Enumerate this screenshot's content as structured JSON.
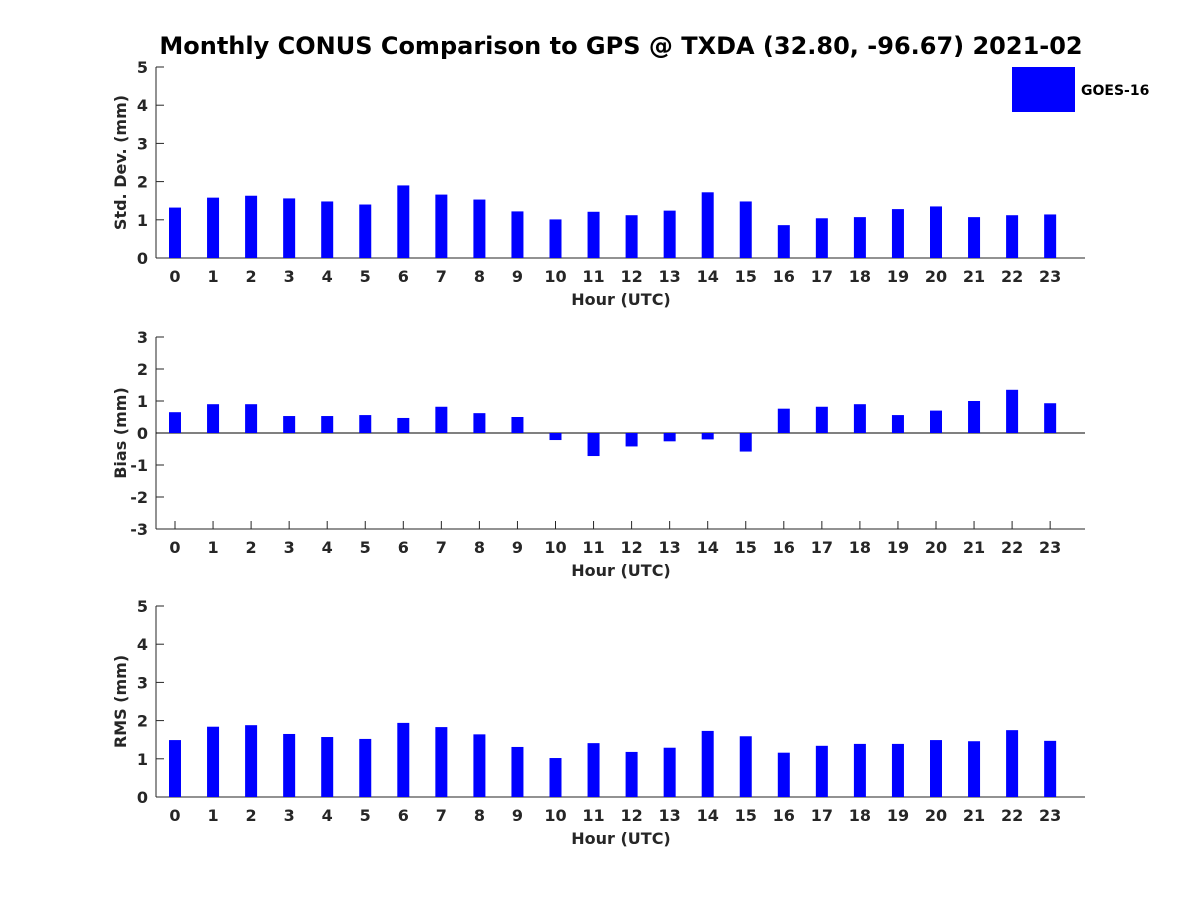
{
  "title": "Monthly CONUS Comparison to GPS @ TXDA (32.80, -96.67) 2021-02",
  "legend": {
    "label": "GOES-16",
    "color": "#0000ff"
  },
  "chart_data": [
    {
      "type": "bar",
      "categories": [
        "0",
        "1",
        "2",
        "3",
        "4",
        "5",
        "6",
        "7",
        "8",
        "9",
        "10",
        "11",
        "12",
        "13",
        "14",
        "15",
        "16",
        "17",
        "18",
        "19",
        "20",
        "21",
        "22",
        "23"
      ],
      "series": [
        {
          "name": "GOES-16",
          "values": [
            1.32,
            1.58,
            1.63,
            1.56,
            1.48,
            1.4,
            1.9,
            1.66,
            1.53,
            1.22,
            1.01,
            1.21,
            1.12,
            1.24,
            1.72,
            1.48,
            0.86,
            1.04,
            1.07,
            1.28,
            1.35,
            1.07,
            1.12,
            1.14
          ]
        }
      ],
      "xlabel": "Hour (UTC)",
      "ylabel": "Std. Dev. (mm)",
      "ylim": [
        0,
        5
      ],
      "yticks": [
        "0",
        "1",
        "2",
        "3",
        "4",
        "5"
      ]
    },
    {
      "type": "bar",
      "categories": [
        "0",
        "1",
        "2",
        "3",
        "4",
        "5",
        "6",
        "7",
        "8",
        "9",
        "10",
        "11",
        "12",
        "13",
        "14",
        "15",
        "16",
        "17",
        "18",
        "19",
        "20",
        "21",
        "22",
        "23"
      ],
      "series": [
        {
          "name": "GOES-16",
          "values": [
            0.65,
            0.9,
            0.9,
            0.53,
            0.53,
            0.56,
            0.47,
            0.82,
            0.62,
            0.5,
            -0.22,
            -0.72,
            -0.42,
            -0.26,
            -0.2,
            -0.58,
            0.76,
            0.82,
            0.9,
            0.56,
            0.7,
            1.0,
            1.35,
            0.93
          ]
        }
      ],
      "xlabel": "Hour (UTC)",
      "ylabel": "Bias (mm)",
      "ylim": [
        -3,
        3
      ],
      "yticks": [
        "-3",
        "-2",
        "-1",
        "0",
        "1",
        "2",
        "3"
      ]
    },
    {
      "type": "bar",
      "categories": [
        "0",
        "1",
        "2",
        "3",
        "4",
        "5",
        "6",
        "7",
        "8",
        "9",
        "10",
        "11",
        "12",
        "13",
        "14",
        "15",
        "16",
        "17",
        "18",
        "19",
        "20",
        "21",
        "22",
        "23"
      ],
      "series": [
        {
          "name": "GOES-16",
          "values": [
            1.49,
            1.84,
            1.88,
            1.65,
            1.57,
            1.52,
            1.94,
            1.83,
            1.64,
            1.31,
            1.02,
            1.41,
            1.18,
            1.29,
            1.73,
            1.59,
            1.16,
            1.34,
            1.39,
            1.39,
            1.49,
            1.46,
            1.75,
            1.47
          ]
        }
      ],
      "xlabel": "Hour (UTC)",
      "ylabel": "RMS (mm)",
      "ylim": [
        0,
        5
      ],
      "yticks": [
        "0",
        "1",
        "2",
        "3",
        "4",
        "5"
      ]
    }
  ]
}
